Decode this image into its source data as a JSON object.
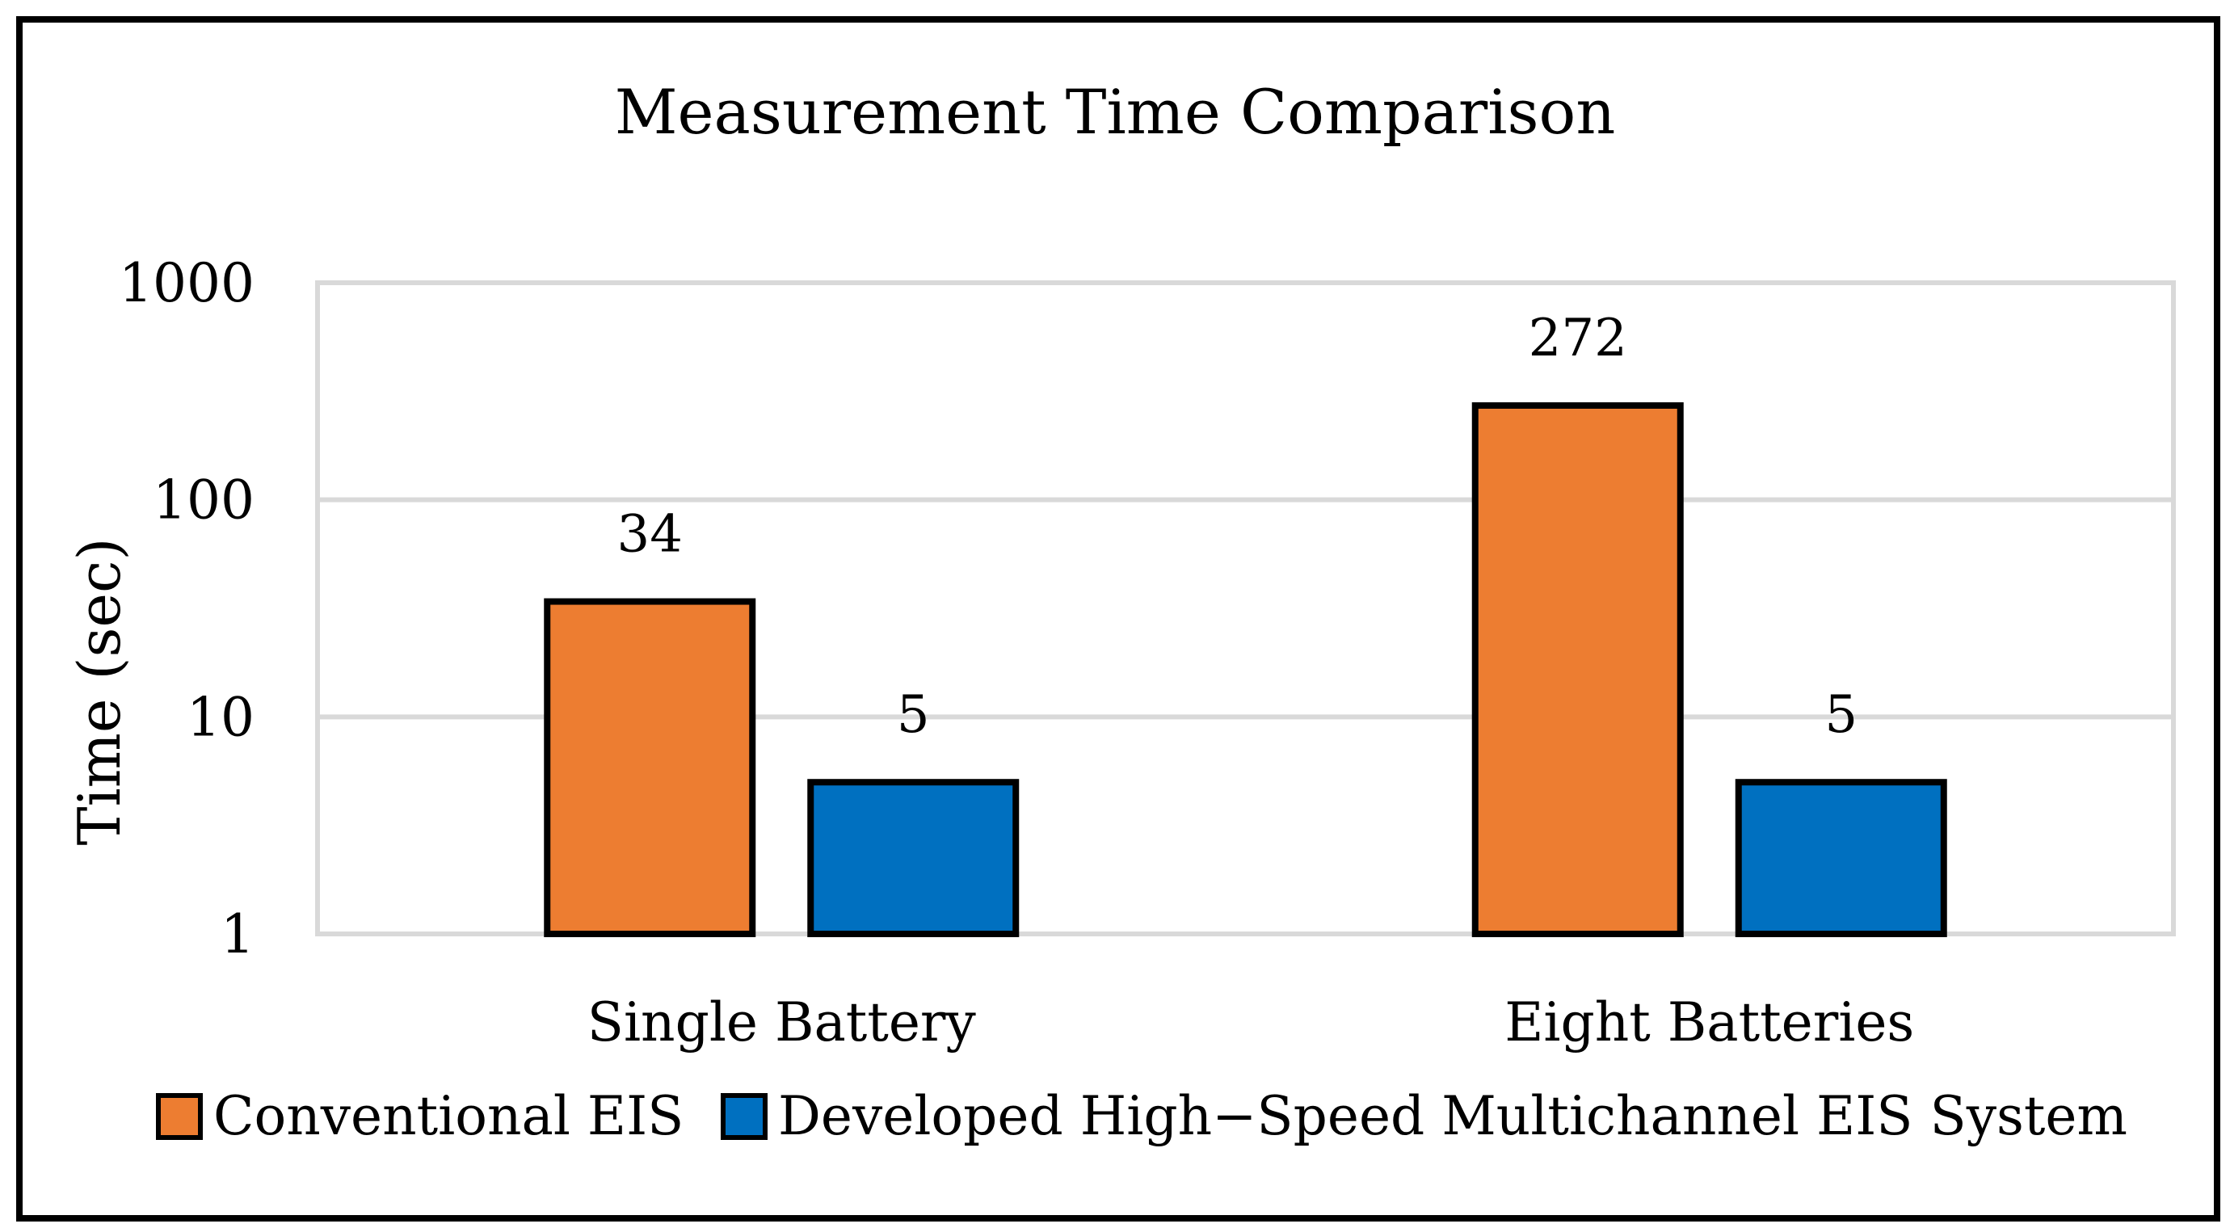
{
  "chart_data": {
    "type": "bar",
    "title": "Measurement Time Comparison",
    "xlabel": "",
    "ylabel": "Time (sec)",
    "yscale": "log",
    "ylim": [
      1,
      1000
    ],
    "yticks": [
      1,
      10,
      100,
      1000
    ],
    "ytick_labels": [
      "1",
      "10",
      "100",
      "1000"
    ],
    "grid": true,
    "legend_position": "bottom",
    "categories": [
      "Single Battery",
      "Eight Batteries"
    ],
    "series": [
      {
        "name": "Conventional EIS",
        "color": "#ED7D31",
        "values": [
          34,
          272
        ],
        "labels": [
          "34",
          "272"
        ]
      },
      {
        "name": "Developed High−Speed Multichannel EIS System",
        "color": "#0070C0",
        "values": [
          5,
          5
        ],
        "labels": [
          "5",
          "5"
        ]
      }
    ]
  }
}
